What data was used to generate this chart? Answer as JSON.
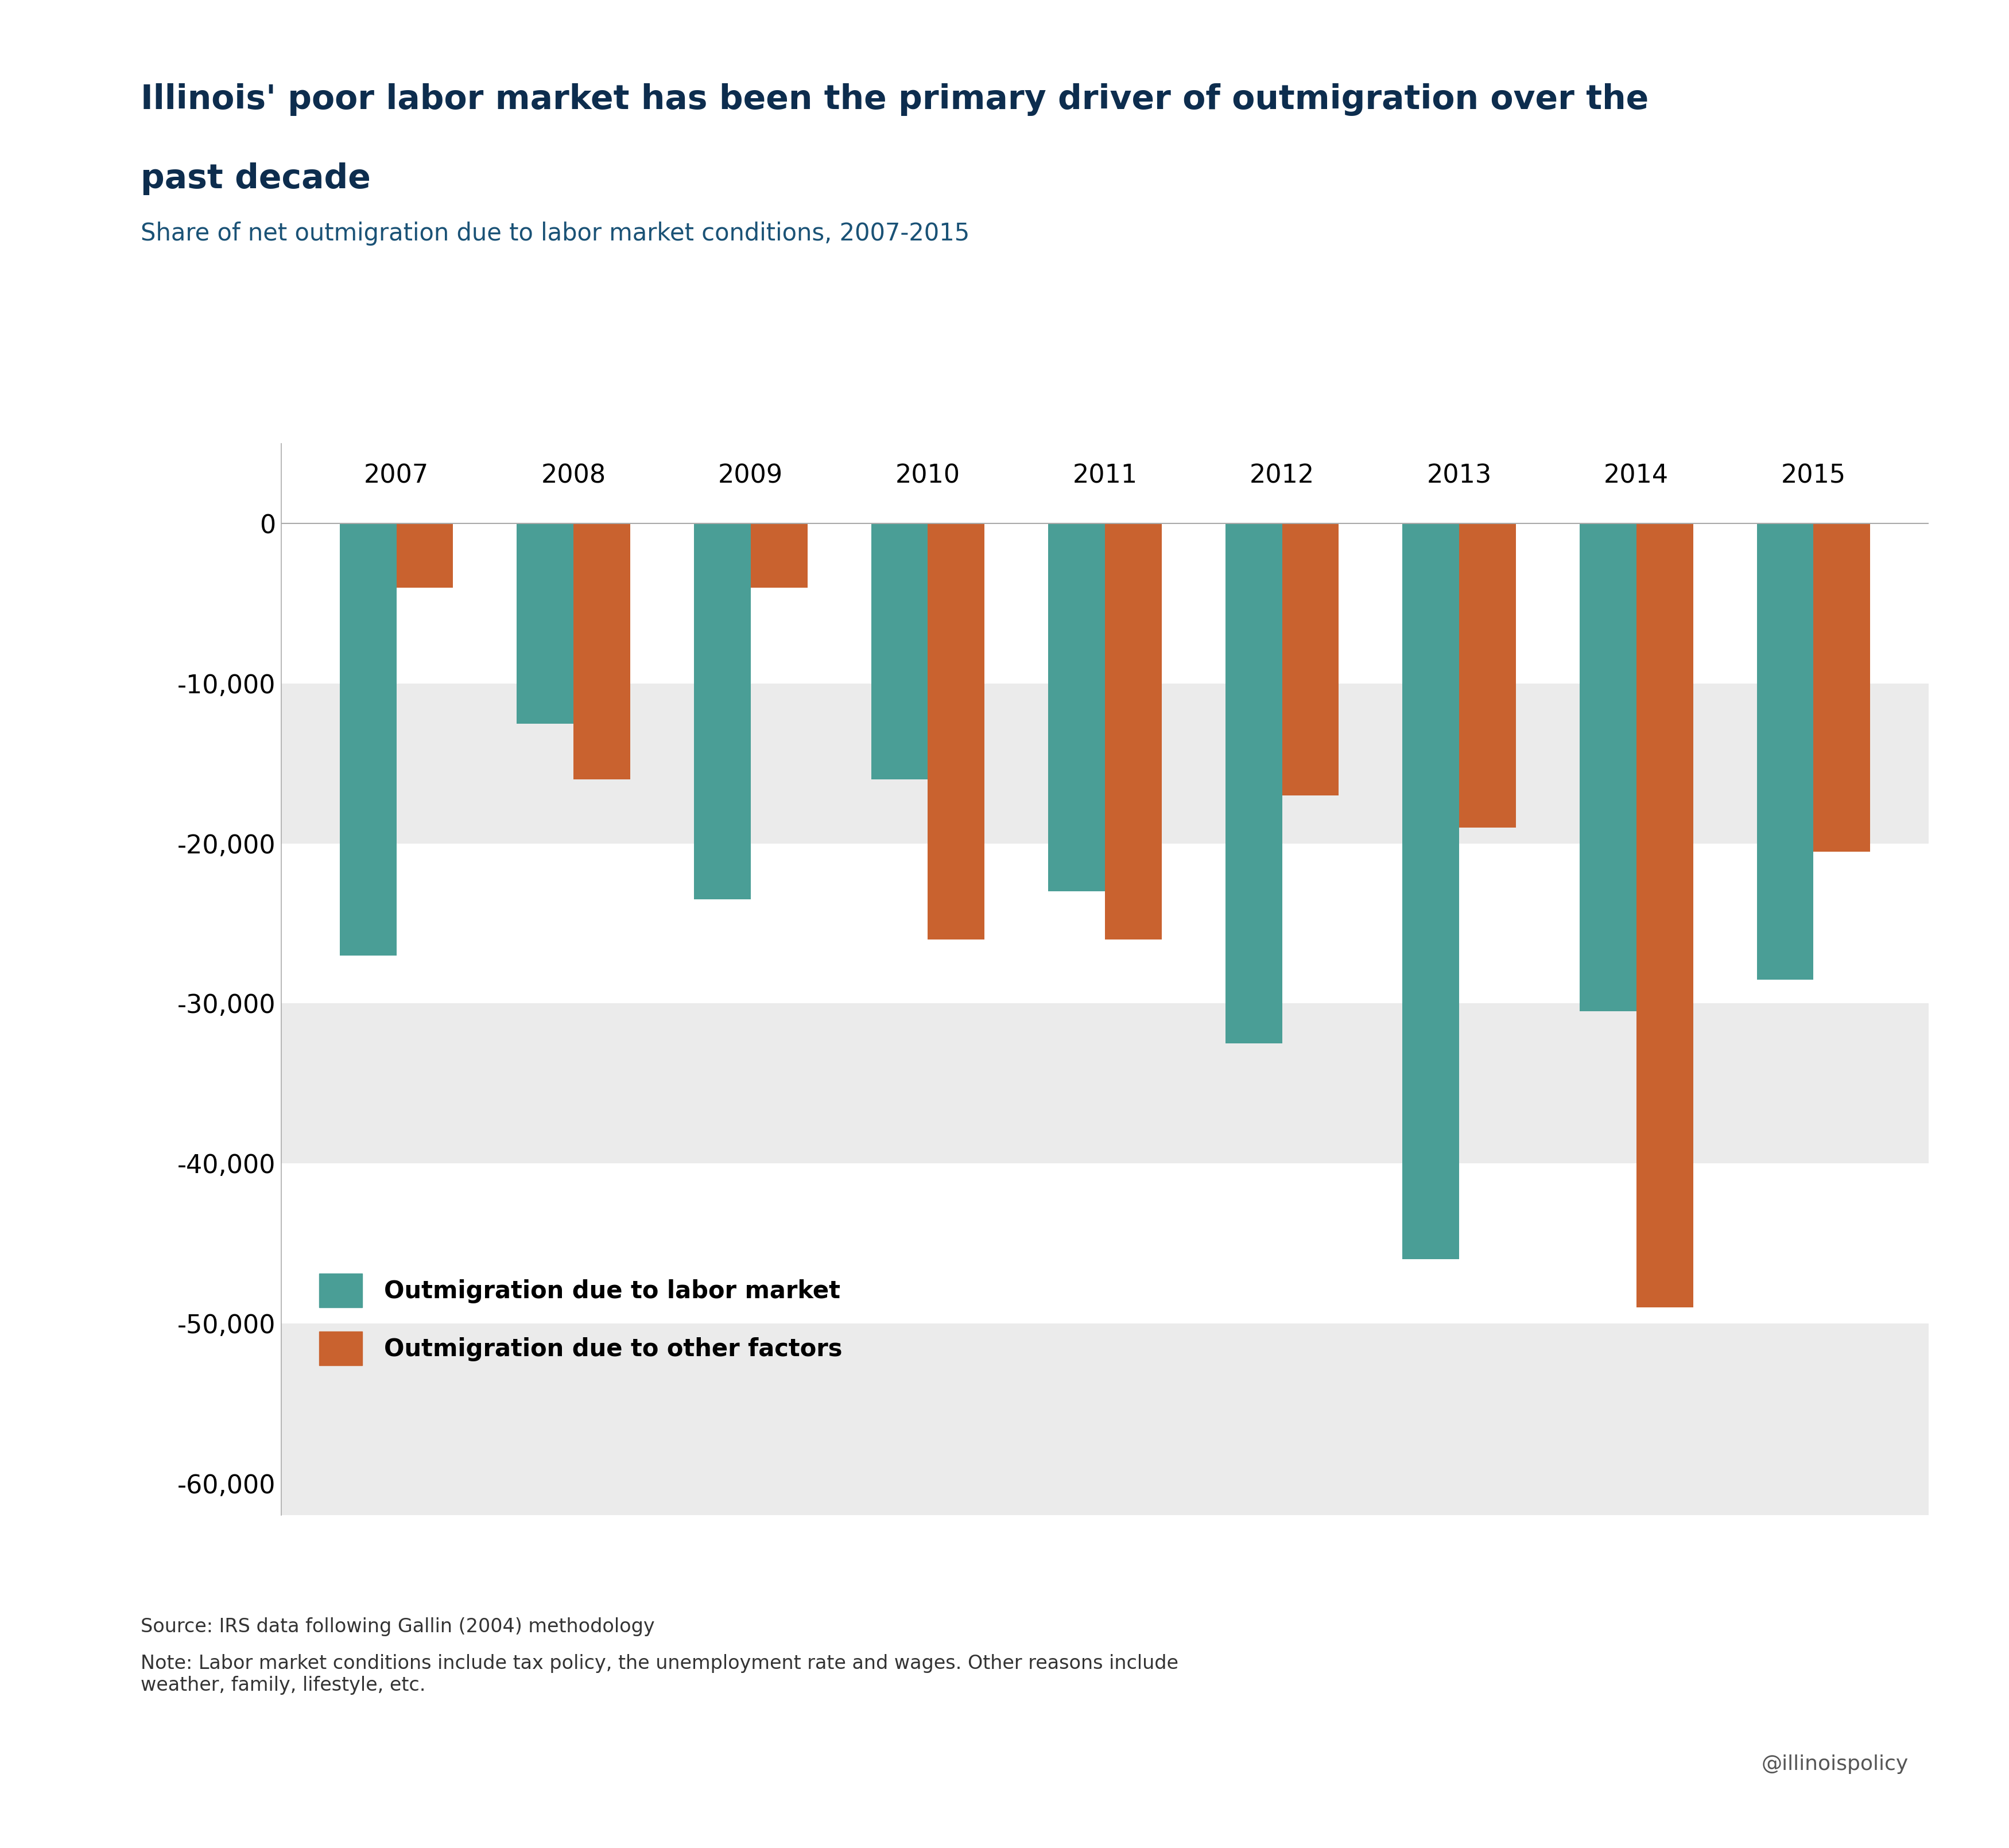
{
  "years": [
    "2007",
    "2008",
    "2009",
    "2010",
    "2011",
    "2012",
    "2013",
    "2014",
    "2015"
  ],
  "labor_market": [
    -27000,
    -12500,
    -23500,
    -16000,
    -23000,
    -32500,
    -46000,
    -30500,
    -28500
  ],
  "other_factors": [
    -4000,
    -16000,
    -4000,
    -26000,
    -26000,
    -17000,
    -19000,
    -49000,
    -20500
  ],
  "labor_color": "#4a9e96",
  "other_color": "#c9622f",
  "title_line1": "Illinois' poor labor market has been the primary driver of outmigration over the",
  "title_line2": "past decade",
  "subtitle": "Share of net outmigration due to labor market conditions, 2007-2015",
  "title_color": "#0d2d4e",
  "subtitle_color": "#1a5276",
  "legend_labor": "Outmigration due to labor market",
  "legend_other": "Outmigration due to other factors",
  "source_text": "Source: IRS data following Gallin (2004) methodology",
  "note_text": "Note: Labor market conditions include tax policy, the unemployment rate and wages. Other reasons include\nweather, family, lifestyle, etc.",
  "watermark": "@illinoispolicy",
  "ylim": [
    -62000,
    5000
  ],
  "yticks": [
    0,
    -10000,
    -20000,
    -30000,
    -40000,
    -50000,
    -60000
  ],
  "fig_bg": "#ffffff",
  "bar_width": 0.32
}
